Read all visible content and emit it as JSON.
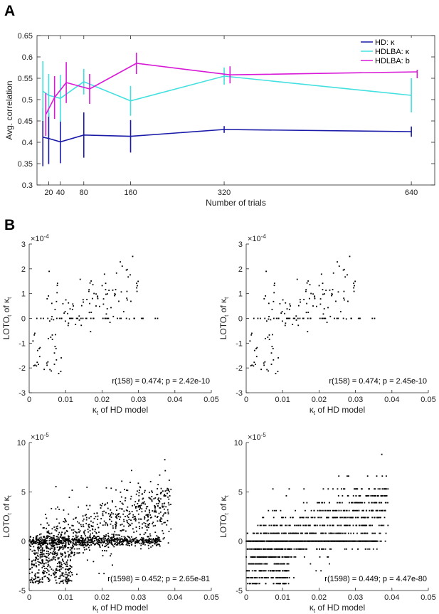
{
  "panels": {
    "a": "A",
    "b": "B"
  },
  "chart_data": [
    {
      "type": "line",
      "panel": "A",
      "title": "",
      "xlabel": "Number of trials",
      "ylabel": "Avg. correlation",
      "xticks": [
        20,
        40,
        80,
        160,
        320,
        640
      ],
      "yticks": [
        0.3,
        0.35,
        0.4,
        0.45,
        0.5,
        0.55,
        0.6,
        0.65
      ],
      "ytick_labels": [
        "0.3",
        "0.35",
        "0.4",
        "0.45",
        "0.5",
        "0.55",
        "0.6",
        "0.65"
      ],
      "xlim": [
        0,
        680
      ],
      "ylim": [
        0.3,
        0.65
      ],
      "legend_location": "top-right",
      "series": [
        {
          "name": "HD: κ",
          "color": "#1a1aa8",
          "x": [
            10,
            20,
            40,
            80,
            160,
            320,
            640
          ],
          "values": [
            0.412,
            0.409,
            0.401,
            0.417,
            0.414,
            0.43,
            0.425
          ],
          "err": [
            0.068,
            0.06,
            0.05,
            0.053,
            0.038,
            0.008,
            0.012
          ]
        },
        {
          "name": "HDLBA: κ",
          "color": "#44e0e0",
          "x": [
            10,
            20,
            40,
            80,
            160,
            320,
            640
          ],
          "values": [
            0.52,
            0.51,
            0.503,
            0.542,
            0.497,
            0.555,
            0.51
          ],
          "err": [
            0.07,
            0.05,
            0.055,
            0.03,
            0.035,
            0.02,
            0.04
          ]
        },
        {
          "name": "HDLBA: b",
          "color": "#d81ad8",
          "x": [
            15,
            30,
            50,
            90,
            170,
            330,
            650
          ],
          "values": [
            0.465,
            0.505,
            0.54,
            0.525,
            0.585,
            0.558,
            0.565
          ],
          "err": [
            0.05,
            0.05,
            0.048,
            0.035,
            0.025,
            0.02,
            0.015
          ]
        }
      ]
    },
    {
      "type": "scatter",
      "panel": "B",
      "xlabel": "κ",
      "xlabel_sub": "t",
      "xlabel_rest": " of HD model",
      "ylabel_main": "LOTO",
      "ylabel_sub1": "t",
      "ylabel_mid": " of κ",
      "ylabel_sub2": "t",
      "exponent_base": "×10",
      "exponent": "-4",
      "xlim": [
        0,
        0.05
      ],
      "ylim": [
        -3,
        3
      ],
      "xticks": [
        0,
        0.01,
        0.02,
        0.03,
        0.04,
        0.05
      ],
      "xtick_labels": [
        "0",
        "0.01",
        "0.02",
        "0.03",
        "0.04",
        "0.05"
      ],
      "yticks": [
        -3,
        -2,
        -1,
        0,
        1,
        2,
        3
      ],
      "ytick_labels": [
        "-3",
        "-2",
        "-1",
        "0",
        "1",
        "2",
        "3"
      ],
      "annotation": "r(158) = 0.474; p = 2.42e-10",
      "n_points": 160,
      "seed": 11,
      "style": "continuous"
    },
    {
      "type": "scatter",
      "panel": "B",
      "xlabel": "κ",
      "xlabel_sub": "t",
      "xlabel_rest": " of HD model",
      "ylabel_main": "LOTO",
      "ylabel_sub1": "t",
      "ylabel_mid": " of κ",
      "ylabel_sub2": "t",
      "exponent_base": "×10",
      "exponent": "-4",
      "xlim": [
        0,
        0.05
      ],
      "ylim": [
        -3,
        3
      ],
      "xticks": [
        0,
        0.01,
        0.02,
        0.03,
        0.04,
        0.05
      ],
      "xtick_labels": [
        "0",
        "0.01",
        "0.02",
        "0.03",
        "0.04",
        "0.05"
      ],
      "yticks": [
        -3,
        -2,
        -1,
        0,
        1,
        2,
        3
      ],
      "ytick_labels": [
        "-3",
        "-2",
        "-1",
        "0",
        "1",
        "2",
        "3"
      ],
      "annotation": "r(158) = 0.474; p = 2.45e-10",
      "n_points": 160,
      "seed": 11,
      "style": "continuous"
    },
    {
      "type": "scatter",
      "panel": "B",
      "xlabel": "κ",
      "xlabel_sub": "t",
      "xlabel_rest": " of HD model",
      "ylabel_main": "LOTO",
      "ylabel_sub1": "t",
      "ylabel_mid": " of κ",
      "ylabel_sub2": "t",
      "exponent_base": "×10",
      "exponent": "-5",
      "xlim": [
        0,
        0.05
      ],
      "ylim": [
        -5,
        10
      ],
      "xticks": [
        0,
        0.01,
        0.02,
        0.03,
        0.04,
        0.05
      ],
      "xtick_labels": [
        "0",
        "0.01",
        "0.02",
        "0.03",
        "0.04",
        "0.05"
      ],
      "yticks": [
        -5,
        0,
        5,
        10
      ],
      "ytick_labels": [
        "-5",
        "0",
        "5",
        "10"
      ],
      "annotation": "r(1598) = 0.452; p = 2.65e-81",
      "n_points": 1600,
      "seed": 29,
      "style": "continuous"
    },
    {
      "type": "scatter",
      "panel": "B",
      "xlabel": "κ",
      "xlabel_sub": "t",
      "xlabel_rest": " of HD model",
      "ylabel_main": "LOTO",
      "ylabel_sub1": "t",
      "ylabel_mid": " of κ",
      "ylabel_sub2": "t",
      "exponent_base": "×10",
      "exponent": "-5",
      "xlim": [
        0,
        0.05
      ],
      "ylim": [
        -5,
        10
      ],
      "xticks": [
        0,
        0.01,
        0.02,
        0.03,
        0.04,
        0.05
      ],
      "xtick_labels": [
        "0",
        "0.01",
        "0.02",
        "0.03",
        "0.04",
        "0.05"
      ],
      "yticks": [
        -5,
        0,
        5,
        10
      ],
      "ytick_labels": [
        "-5",
        "0",
        "5",
        "10"
      ],
      "annotation": "r(1598) = 0.449; p = 4.47e-80",
      "n_points": 1600,
      "seed": 29,
      "style": "quantized",
      "levels": [
        -4.3,
        -3.7,
        -3.0,
        -2.3,
        -1.6,
        -0.8,
        0,
        0.8,
        1.6,
        2.4,
        3.1,
        3.9,
        4.6,
        5.3,
        6.6,
        8.8
      ]
    }
  ]
}
